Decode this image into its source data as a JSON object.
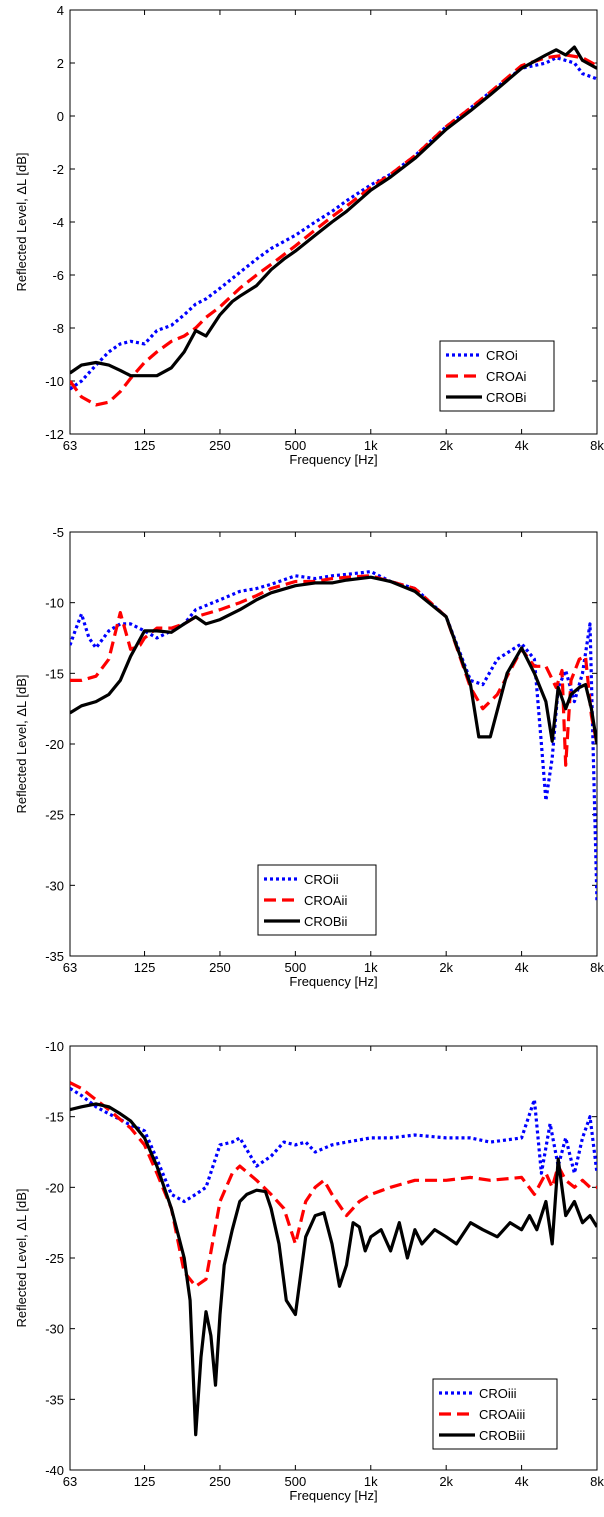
{
  "chart_data": [
    {
      "type": "line",
      "xlabel": "Frequency [Hz]",
      "ylabel": "Reflected Level, ΔL [dB]",
      "x_scale": "log2",
      "xlim": [
        63,
        8000
      ],
      "ylim": [
        -12,
        4
      ],
      "x_ticks": [
        63,
        125,
        250,
        500,
        1000,
        2000,
        4000,
        8000
      ],
      "x_tick_labels": [
        "63",
        "125",
        "250",
        "500",
        "1k",
        "2k",
        "4k",
        "8k"
      ],
      "y_ticks": [
        -12,
        -10,
        -8,
        -6,
        -4,
        -2,
        0,
        2,
        4
      ],
      "y_tick_labels": [
        "-12",
        "-10",
        "-8",
        "-6",
        "-4",
        "-2",
        "0",
        "2",
        "4"
      ],
      "grid": false,
      "legend_position": "bottom-right",
      "series": [
        {
          "name": "CROi",
          "color": "#0000ff",
          "style": "dotted",
          "x": [
            63,
            70,
            80,
            90,
            100,
            110,
            125,
            140,
            160,
            180,
            200,
            220,
            250,
            300,
            350,
            400,
            500,
            600,
            700,
            800,
            1000,
            1200,
            1500,
            2000,
            2500,
            3000,
            4000,
            5000,
            5500,
            6000,
            6500,
            7000,
            8000
          ],
          "y": [
            -10.3,
            -10.0,
            -9.4,
            -8.9,
            -8.6,
            -8.5,
            -8.6,
            -8.1,
            -7.9,
            -7.5,
            -7.1,
            -6.9,
            -6.5,
            -5.9,
            -5.4,
            -5.0,
            -4.5,
            -4.0,
            -3.6,
            -3.2,
            -2.6,
            -2.2,
            -1.5,
            -0.4,
            0.3,
            0.9,
            1.8,
            2.0,
            2.2,
            2.1,
            2.0,
            1.6,
            1.4
          ]
        },
        {
          "name": "CROAi",
          "color": "#ff0000",
          "style": "dashed",
          "x": [
            63,
            70,
            80,
            90,
            100,
            110,
            125,
            140,
            160,
            180,
            200,
            220,
            250,
            300,
            350,
            400,
            500,
            600,
            700,
            800,
            1000,
            1200,
            1500,
            2000,
            2500,
            3000,
            4000,
            5000,
            6000,
            7000,
            8000
          ],
          "y": [
            -10.0,
            -10.6,
            -10.9,
            -10.8,
            -10.4,
            -9.9,
            -9.3,
            -8.9,
            -8.5,
            -8.3,
            -8.0,
            -7.6,
            -7.2,
            -6.5,
            -6.0,
            -5.6,
            -4.9,
            -4.3,
            -3.8,
            -3.4,
            -2.7,
            -2.2,
            -1.5,
            -0.4,
            0.3,
            0.9,
            1.9,
            2.2,
            2.3,
            2.2,
            1.9
          ]
        },
        {
          "name": "CROBi",
          "color": "#000000",
          "style": "solid",
          "x": [
            63,
            70,
            80,
            90,
            100,
            110,
            125,
            140,
            160,
            180,
            200,
            220,
            250,
            280,
            300,
            350,
            400,
            450,
            500,
            600,
            700,
            800,
            1000,
            1200,
            1500,
            2000,
            2500,
            3000,
            4000,
            5000,
            5500,
            6000,
            6500,
            7000,
            8000
          ],
          "y": [
            -9.7,
            -9.4,
            -9.3,
            -9.4,
            -9.6,
            -9.8,
            -9.8,
            -9.8,
            -9.5,
            -8.9,
            -8.1,
            -8.3,
            -7.5,
            -7.0,
            -6.8,
            -6.4,
            -5.8,
            -5.4,
            -5.1,
            -4.5,
            -4.0,
            -3.6,
            -2.8,
            -2.3,
            -1.6,
            -0.5,
            0.2,
            0.8,
            1.8,
            2.3,
            2.5,
            2.3,
            2.6,
            2.1,
            1.8
          ]
        }
      ]
    },
    {
      "type": "line",
      "xlabel": "Frequency [Hz]",
      "ylabel": "Reflected Level, ΔL [dB]",
      "x_scale": "log2",
      "xlim": [
        63,
        8000
      ],
      "ylim": [
        -35,
        -5
      ],
      "x_ticks": [
        63,
        125,
        250,
        500,
        1000,
        2000,
        4000,
        8000
      ],
      "x_tick_labels": [
        "63",
        "125",
        "250",
        "500",
        "1k",
        "2k",
        "4k",
        "8k"
      ],
      "y_ticks": [
        -35,
        -30,
        -25,
        -20,
        -15,
        -10,
        -5
      ],
      "y_tick_labels": [
        "-35",
        "-30",
        "-25",
        "-20",
        "-15",
        "-10",
        "-5"
      ],
      "grid": false,
      "legend_position": "bottom-left",
      "series": [
        {
          "name": "CROii",
          "color": "#0000ff",
          "style": "dotted",
          "x": [
            63,
            66,
            70,
            75,
            80,
            90,
            100,
            110,
            125,
            140,
            160,
            180,
            200,
            250,
            300,
            350,
            400,
            500,
            600,
            700,
            800,
            1000,
            1200,
            1500,
            2000,
            2500,
            2800,
            3200,
            4000,
            4500,
            4800,
            5000,
            5300,
            5600,
            6000,
            6500,
            7000,
            7500,
            8000
          ],
          "y": [
            -13.0,
            -12.0,
            -10.8,
            -12.5,
            -13.2,
            -12.0,
            -11.5,
            -11.5,
            -12.0,
            -12.5,
            -12.0,
            -11.5,
            -10.5,
            -9.8,
            -9.2,
            -9.0,
            -8.7,
            -8.1,
            -8.3,
            -8.1,
            -8.0,
            -7.8,
            -8.5,
            -9.0,
            -11.0,
            -15.5,
            -15.8,
            -14.0,
            -12.9,
            -14.0,
            -20.0,
            -24.0,
            -21.0,
            -16.0,
            -14.8,
            -17.0,
            -15.0,
            -11.5,
            -31.2
          ]
        },
        {
          "name": "CROAii",
          "color": "#ff0000",
          "style": "dashed",
          "x": [
            63,
            70,
            80,
            90,
            100,
            110,
            120,
            125,
            140,
            160,
            180,
            200,
            250,
            300,
            350,
            400,
            500,
            600,
            700,
            800,
            1000,
            1200,
            1500,
            2000,
            2500,
            2800,
            3200,
            4000,
            4500,
            5000,
            5500,
            5800,
            6000,
            6300,
            6800,
            7200,
            7600,
            8000
          ],
          "y": [
            -15.5,
            -15.5,
            -15.2,
            -14.0,
            -10.7,
            -13.3,
            -13.0,
            -12.5,
            -11.8,
            -11.8,
            -11.5,
            -11.0,
            -10.5,
            -10.0,
            -9.5,
            -9.0,
            -8.5,
            -8.5,
            -8.3,
            -8.2,
            -8.1,
            -8.5,
            -9.0,
            -11.0,
            -16.0,
            -17.5,
            -16.5,
            -13.3,
            -14.5,
            -14.5,
            -16.0,
            -14.8,
            -21.5,
            -15.5,
            -14.0,
            -13.8,
            -18.0,
            -20.0
          ]
        },
        {
          "name": "CROBii",
          "color": "#000000",
          "style": "solid",
          "x": [
            63,
            70,
            80,
            90,
            100,
            110,
            125,
            140,
            160,
            180,
            200,
            220,
            250,
            300,
            350,
            400,
            500,
            600,
            700,
            800,
            1000,
            1200,
            1500,
            2000,
            2500,
            2700,
            3000,
            3500,
            4000,
            4500,
            5000,
            5300,
            5600,
            6000,
            6300,
            6800,
            7200,
            7600,
            8000
          ],
          "y": [
            -17.8,
            -17.3,
            -17.0,
            -16.5,
            -15.5,
            -13.8,
            -12.0,
            -12.0,
            -12.1,
            -11.5,
            -11.0,
            -11.5,
            -11.2,
            -10.5,
            -9.8,
            -9.3,
            -8.8,
            -8.6,
            -8.6,
            -8.4,
            -8.2,
            -8.5,
            -9.2,
            -11.0,
            -15.8,
            -19.5,
            -19.5,
            -15.0,
            -13.2,
            -15.0,
            -17.0,
            -19.8,
            -16.0,
            -17.5,
            -16.5,
            -16.0,
            -15.8,
            -17.5,
            -20.0
          ]
        }
      ]
    },
    {
      "type": "line",
      "xlabel": "Frequency [Hz]",
      "ylabel": "Reflected Level, ΔL [dB]",
      "x_scale": "log2",
      "xlim": [
        63,
        8000
      ],
      "ylim": [
        -40,
        -10
      ],
      "x_ticks": [
        63,
        125,
        250,
        500,
        1000,
        2000,
        4000,
        8000
      ],
      "x_tick_labels": [
        "63",
        "125",
        "250",
        "500",
        "1k",
        "2k",
        "4k",
        "8k"
      ],
      "y_ticks": [
        -40,
        -35,
        -30,
        -25,
        -20,
        -15,
        -10
      ],
      "y_tick_labels": [
        "-40",
        "-35",
        "-30",
        "-25",
        "-20",
        "-15",
        "-10"
      ],
      "grid": false,
      "legend_position": "bottom-right",
      "series": [
        {
          "name": "CROiii",
          "color": "#0000ff",
          "style": "dotted",
          "x": [
            63,
            70,
            80,
            90,
            100,
            110,
            125,
            140,
            160,
            180,
            200,
            220,
            250,
            280,
            300,
            350,
            400,
            450,
            500,
            550,
            600,
            700,
            800,
            1000,
            1200,
            1500,
            2000,
            2500,
            3000,
            4000,
            4500,
            4800,
            5200,
            5600,
            6000,
            6500,
            7000,
            7500,
            8000
          ],
          "y": [
            -13.0,
            -13.5,
            -14.3,
            -14.8,
            -15.2,
            -15.6,
            -16.0,
            -18.0,
            -20.5,
            -21.0,
            -20.5,
            -20.0,
            -17.0,
            -16.8,
            -16.5,
            -18.5,
            -17.8,
            -16.8,
            -17.0,
            -16.8,
            -17.5,
            -17.0,
            -16.8,
            -16.5,
            -16.5,
            -16.3,
            -16.5,
            -16.5,
            -16.8,
            -16.5,
            -13.8,
            -19.0,
            -15.5,
            -18.5,
            -16.5,
            -19.0,
            -16.5,
            -15.0,
            -19.0
          ]
        },
        {
          "name": "CROAiii",
          "color": "#ff0000",
          "style": "dashed",
          "x": [
            63,
            70,
            80,
            90,
            100,
            110,
            125,
            140,
            160,
            180,
            200,
            220,
            250,
            280,
            300,
            350,
            400,
            450,
            500,
            550,
            600,
            650,
            700,
            800,
            900,
            1000,
            1200,
            1500,
            2000,
            2500,
            3000,
            4000,
            4500,
            5000,
            5300,
            5600,
            6000,
            6500,
            7000,
            7500,
            8000
          ],
          "y": [
            -12.6,
            -13.0,
            -13.8,
            -14.5,
            -15.2,
            -15.8,
            -17.0,
            -19.0,
            -21.5,
            -26.0,
            -27.0,
            -26.5,
            -21.0,
            -19.0,
            -18.5,
            -19.5,
            -20.5,
            -21.5,
            -24.0,
            -21.0,
            -20.0,
            -19.5,
            -20.5,
            -22.0,
            -21.0,
            -20.5,
            -20.0,
            -19.5,
            -19.5,
            -19.3,
            -19.5,
            -19.3,
            -20.5,
            -19.0,
            -20.0,
            -18.5,
            -19.5,
            -20.0,
            -19.5,
            -20.0,
            -20.0
          ]
        },
        {
          "name": "CROBiii",
          "color": "#000000",
          "style": "solid",
          "x": [
            63,
            70,
            80,
            90,
            100,
            110,
            125,
            140,
            160,
            180,
            190,
            200,
            210,
            220,
            230,
            240,
            250,
            260,
            280,
            300,
            320,
            350,
            380,
            400,
            430,
            460,
            500,
            550,
            600,
            650,
            700,
            750,
            800,
            850,
            900,
            950,
            1000,
            1100,
            1200,
            1300,
            1400,
            1500,
            1600,
            1800,
            2000,
            2200,
            2500,
            2800,
            3200,
            3600,
            4000,
            4300,
            4600,
            5000,
            5300,
            5600,
            6000,
            6500,
            7000,
            7500,
            8000
          ],
          "y": [
            -14.5,
            -14.3,
            -14.1,
            -14.3,
            -14.8,
            -15.3,
            -16.5,
            -18.5,
            -21.5,
            -25.0,
            -28.0,
            -37.5,
            -32.0,
            -28.8,
            -30.5,
            -34.0,
            -29.0,
            -25.5,
            -23.0,
            -21.0,
            -20.5,
            -20.2,
            -20.3,
            -21.5,
            -24.0,
            -28.0,
            -29.0,
            -23.5,
            -22.0,
            -21.8,
            -24.0,
            -27.0,
            -25.5,
            -22.5,
            -22.8,
            -24.5,
            -23.5,
            -23.0,
            -24.5,
            -22.5,
            -25.0,
            -23.0,
            -24.0,
            -23.0,
            -23.5,
            -24.0,
            -22.5,
            -23.0,
            -23.5,
            -22.5,
            -23.0,
            -22.0,
            -23.0,
            -21.0,
            -24.0,
            -18.0,
            -22.0,
            -21.0,
            -22.5,
            -22.0,
            -22.8
          ]
        }
      ]
    }
  ]
}
